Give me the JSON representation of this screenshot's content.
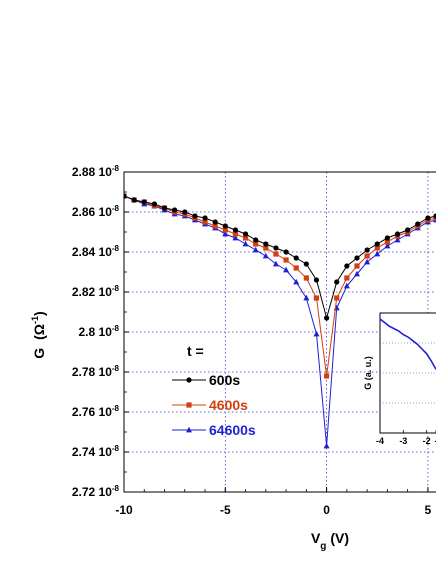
{
  "chart_data": {
    "type": "line",
    "xlabel_main": "V",
    "xlabel_sub": "g",
    "xlabel_unit": "(V)",
    "ylabel_main": "G",
    "ylabel_unit_open": "(",
    "ylabel_unit": "Ω",
    "ylabel_unit_sup": "-1",
    "ylabel_unit_close": ")",
    "xlim": [
      -10,
      5.4
    ],
    "ylim": [
      2.72e-08,
      2.88e-08
    ],
    "x_ticks": [
      {
        "value": -10,
        "label": "-10"
      },
      {
        "value": -5,
        "label": "-5"
      },
      {
        "value": 0,
        "label": "0"
      },
      {
        "value": 5,
        "label": "5"
      }
    ],
    "y_ticks": [
      {
        "value": 2.72e-08,
        "mant": "2.72 10",
        "exp": "-8"
      },
      {
        "value": 2.74e-08,
        "mant": "2.74 10",
        "exp": "-8"
      },
      {
        "value": 2.76e-08,
        "mant": "2.76 10",
        "exp": "-8"
      },
      {
        "value": 2.78e-08,
        "mant": "2.78 10",
        "exp": "-8"
      },
      {
        "value": 2.8e-08,
        "mant": "2.8 10",
        "exp": "-8"
      },
      {
        "value": 2.82e-08,
        "mant": "2.82 10",
        "exp": "-8"
      },
      {
        "value": 2.84e-08,
        "mant": "2.84 10",
        "exp": "-8"
      },
      {
        "value": 2.86e-08,
        "mant": "2.86 10",
        "exp": "-8"
      },
      {
        "value": 2.88e-08,
        "mant": "2.88 10",
        "exp": "-8"
      }
    ],
    "grid": true,
    "legend_title": "t =",
    "series": [
      {
        "name": "600s",
        "color": "#000000",
        "marker": "circle",
        "x": [
          -10,
          -9.5,
          -9,
          -8.5,
          -8,
          -7.5,
          -7,
          -6.5,
          -6,
          -5.5,
          -5,
          -4.5,
          -4,
          -3.5,
          -3,
          -2.5,
          -2,
          -1.5,
          -1,
          -0.5,
          0,
          0.5,
          1,
          1.5,
          2,
          2.5,
          3,
          3.5,
          4,
          4.5,
          5,
          5.4
        ],
        "y": [
          2.868e-08,
          2.866e-08,
          2.865e-08,
          2.864e-08,
          2.862e-08,
          2.861e-08,
          2.86e-08,
          2.858e-08,
          2.857e-08,
          2.855e-08,
          2.853e-08,
          2.851e-08,
          2.849e-08,
          2.846e-08,
          2.844e-08,
          2.842e-08,
          2.84e-08,
          2.837e-08,
          2.834e-08,
          2.826e-08,
          2.807e-08,
          2.825e-08,
          2.833e-08,
          2.837e-08,
          2.841e-08,
          2.844e-08,
          2.847e-08,
          2.849e-08,
          2.851e-08,
          2.854e-08,
          2.857e-08,
          2.858e-08
        ]
      },
      {
        "name": "4600s",
        "color": "#d2400f",
        "marker": "square",
        "x": [
          -10,
          -9.5,
          -9,
          -8.5,
          -8,
          -7.5,
          -7,
          -6.5,
          -6,
          -5.5,
          -5,
          -4.5,
          -4,
          -3.5,
          -3,
          -2.5,
          -2,
          -1.5,
          -1,
          -0.5,
          0,
          0.5,
          1,
          1.5,
          2,
          2.5,
          3,
          3.5,
          4,
          4.5,
          5,
          5.4
        ],
        "y": [
          2.868e-08,
          2.866e-08,
          2.865e-08,
          2.863e-08,
          2.862e-08,
          2.86e-08,
          2.859e-08,
          2.857e-08,
          2.855e-08,
          2.853e-08,
          2.851e-08,
          2.849e-08,
          2.847e-08,
          2.844e-08,
          2.842e-08,
          2.839e-08,
          2.836e-08,
          2.832e-08,
          2.827e-08,
          2.817e-08,
          2.778e-08,
          2.817e-08,
          2.827e-08,
          2.833e-08,
          2.838e-08,
          2.842e-08,
          2.845e-08,
          2.848e-08,
          2.85e-08,
          2.853e-08,
          2.856e-08,
          2.857e-08
        ]
      },
      {
        "name": "64600s",
        "color": "#1f1fd6",
        "marker": "triangle",
        "x": [
          -10,
          -9.5,
          -9,
          -8.5,
          -8,
          -7.5,
          -7,
          -6.5,
          -6,
          -5.5,
          -5,
          -4.5,
          -4,
          -3.5,
          -3,
          -2.5,
          -2,
          -1.5,
          -1,
          -0.5,
          0,
          0.5,
          1,
          1.5,
          2,
          2.5,
          3,
          3.5,
          4,
          4.5,
          5,
          5.4
        ],
        "y": [
          2.868e-08,
          2.866e-08,
          2.864e-08,
          2.863e-08,
          2.861e-08,
          2.859e-08,
          2.858e-08,
          2.856e-08,
          2.854e-08,
          2.852e-08,
          2.849e-08,
          2.847e-08,
          2.844e-08,
          2.841e-08,
          2.838e-08,
          2.834e-08,
          2.831e-08,
          2.825e-08,
          2.817e-08,
          2.799e-08,
          2.743e-08,
          2.812e-08,
          2.823e-08,
          2.829e-08,
          2.835e-08,
          2.839e-08,
          2.843e-08,
          2.846e-08,
          2.849e-08,
          2.852e-08,
          2.855e-08,
          2.856e-08
        ]
      }
    ],
    "inset": {
      "ylabel": "G (a. u.)",
      "xlim": [
        -4,
        -1.6
      ],
      "x_ticks": [
        {
          "value": -4,
          "label": "-4"
        },
        {
          "value": -3,
          "label": "-3"
        },
        {
          "value": -2,
          "label": "-2"
        },
        {
          "value": -1.6,
          "label": "-"
        }
      ],
      "series": {
        "color": "#1f1fd6",
        "x": [
          -4,
          -3.8,
          -3.6,
          -3.4,
          -3.2,
          -3.0,
          -2.8,
          -2.6,
          -2.4,
          -2.2,
          -2.0,
          -1.8,
          -1.6
        ],
        "y": [
          0.95,
          0.92,
          0.89,
          0.87,
          0.85,
          0.82,
          0.8,
          0.77,
          0.74,
          0.7,
          0.66,
          0.6,
          0.53
        ]
      },
      "ylim": [
        0,
        1
      ]
    }
  }
}
